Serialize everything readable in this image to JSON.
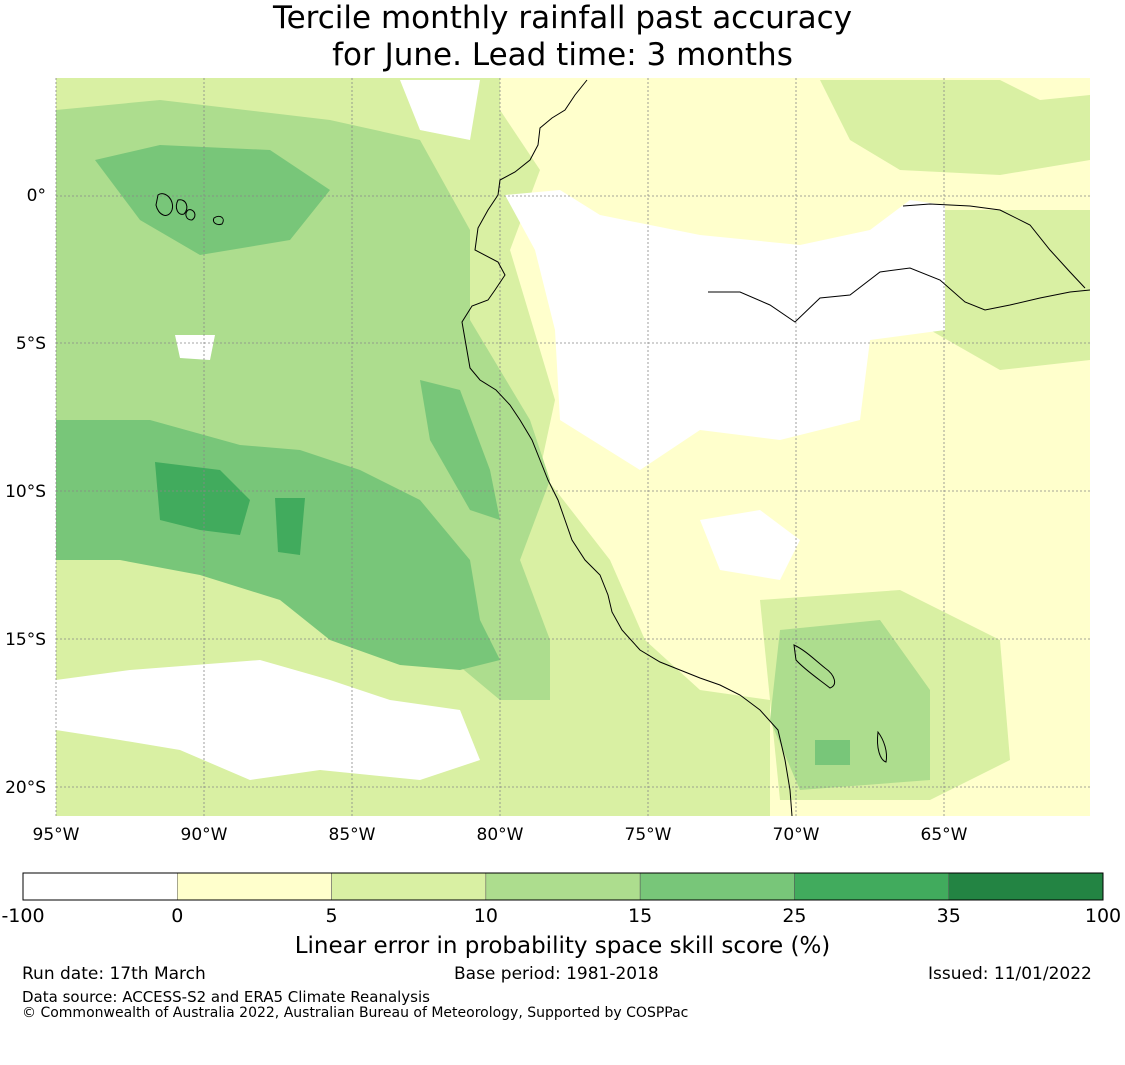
{
  "title": {
    "line1": "Tercile monthly rainfall past accuracy",
    "line2": "for June. Lead time: 3 months"
  },
  "map": {
    "lon_labels": [
      "95°W",
      "90°W",
      "85°W",
      "80°W",
      "75°W",
      "70°W",
      "65°W"
    ],
    "lat_labels": [
      "0°",
      "5°S",
      "10°S",
      "15°S",
      "20°S"
    ],
    "coastline_color": "#000000",
    "gridline_color": "#888888"
  },
  "colorbar": {
    "tick_labels": [
      "-100",
      "0",
      "5",
      "10",
      "15",
      "25",
      "35",
      "100"
    ],
    "colors": [
      "#ffffff",
      "#ffffcc",
      "#d9f0a3",
      "#addd8e",
      "#78c679",
      "#41ab5d",
      "#238443"
    ],
    "label": "Linear error in probability space skill score (%)"
  },
  "footer": {
    "run_date": "Run date: 17th March",
    "base_period": "Base period: 1981-2018",
    "issued": "Issued: 11/01/2022",
    "data_source": "Data source: ACCESS-S2 and ERA5 Climate Reanalysis",
    "copyright": "© Commonwealth of Australia 2022, Australian Bureau of Meteorology, Supported by COSPPac"
  }
}
